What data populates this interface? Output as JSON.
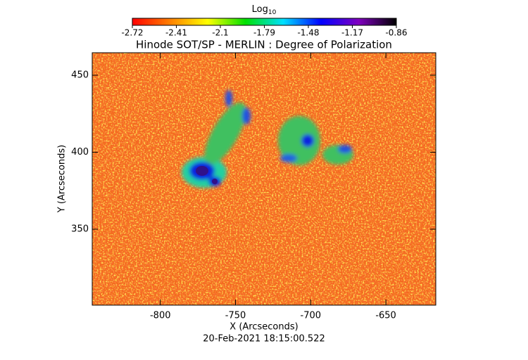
{
  "chart_data": {
    "type": "heatmap",
    "title": "Hinode SOT/SP - MERLIN : Degree of Polarization",
    "x_label": "X (Arcseconds)",
    "y_label": "Y (Arcseconds)",
    "footer": "20-Feb-2021 18:15:00.522",
    "xlim": [
      -845.3,
      -616.8
    ],
    "xticks": [
      -800,
      -750,
      -700,
      -650
    ],
    "ylim": [
      300.7,
      464.6
    ],
    "yticks": [
      350,
      400,
      450
    ],
    "colorbar": {
      "label": "Log",
      "label_subscript": "10",
      "lim": [
        -2.72,
        -0.86
      ],
      "ticks": [
        -2.72,
        -2.41,
        -2.1,
        -1.79,
        -1.48,
        -1.17,
        -0.86
      ],
      "colors": [
        "#ff0000",
        "#ff8000",
        "#ffff00",
        "#00e000",
        "#00e0ff",
        "#0000ff",
        "#8000c0",
        "#000000"
      ]
    }
  }
}
